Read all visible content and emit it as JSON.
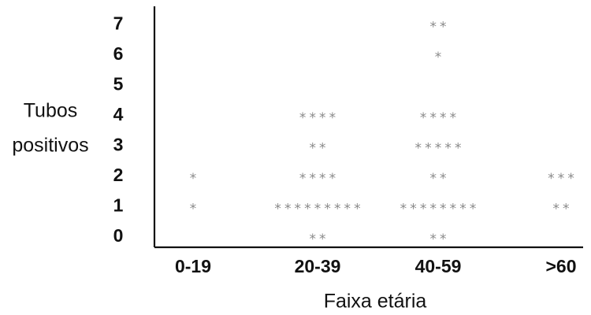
{
  "chart_data": {
    "type": "scatter",
    "xlabel": "Faixa etária",
    "ylabel_lines": [
      "Tubos",
      "positivos"
    ],
    "categories": [
      "0-19",
      "20-39",
      "40-59",
      ">60"
    ],
    "y_ticks": [
      "0",
      "1",
      "2",
      "3",
      "4",
      "5",
      "6",
      "7"
    ],
    "ylim": [
      0,
      7
    ],
    "marker_symbol": "*",
    "counts": [
      [
        0,
        1,
        1,
        0,
        0,
        0,
        0,
        0
      ],
      [
        2,
        9,
        4,
        2,
        4,
        0,
        0,
        0
      ],
      [
        2,
        8,
        2,
        5,
        4,
        0,
        1,
        2
      ],
      [
        0,
        2,
        3,
        0,
        0,
        0,
        0,
        0
      ]
    ],
    "grid": false,
    "legend": "none"
  }
}
